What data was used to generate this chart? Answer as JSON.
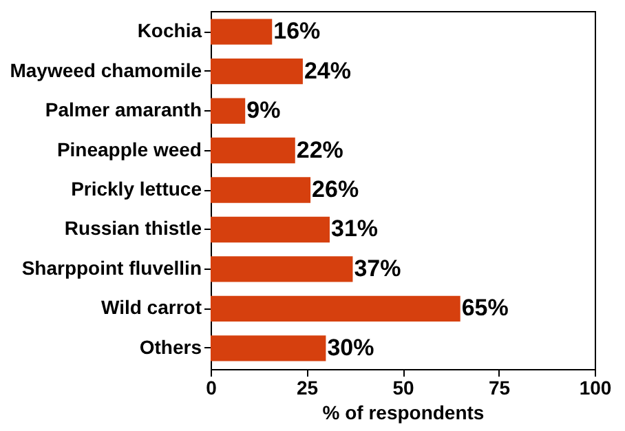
{
  "chart_data": {
    "type": "bar",
    "orientation": "horizontal",
    "xlabel": "% of respondents",
    "categories": [
      "Kochia",
      "Mayweed chamomile",
      "Palmer amaranth",
      "Pineapple weed",
      "Prickly lettuce",
      "Russian thistle",
      "Sharppoint fluvellin",
      "Wild carrot",
      "Others"
    ],
    "values": [
      16,
      24,
      9,
      22,
      26,
      31,
      37,
      65,
      30
    ],
    "value_labels": [
      "16%",
      "24%",
      "9%",
      "22%",
      "26%",
      "31%",
      "37%",
      "65%",
      "30%"
    ],
    "color": "#d6400e",
    "xlim": [
      0,
      100
    ],
    "xticks": [
      0,
      25,
      50,
      75,
      100
    ],
    "grid": false
  }
}
